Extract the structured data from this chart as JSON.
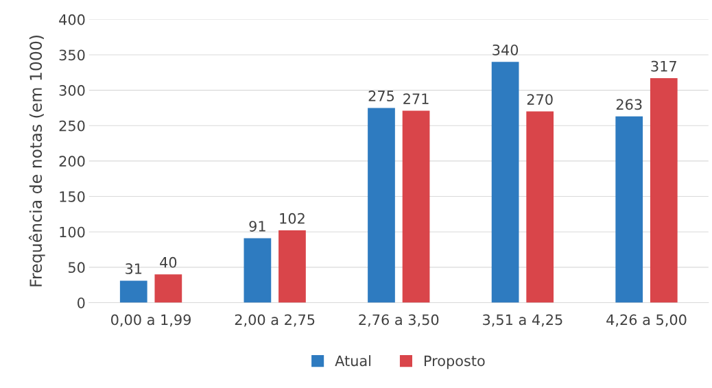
{
  "chart_data": {
    "type": "bar",
    "ylabel": "Frequência de notas (em 1000)",
    "categories": [
      "0,00 a 1,99",
      "2,00 a 2,75",
      "2,76 a 3,50",
      "3,51 a 4,25",
      "4,26 a 5,00"
    ],
    "series": [
      {
        "name": "Atual",
        "color": "#2e7bc0",
        "values": [
          31,
          91,
          275,
          340,
          263
        ]
      },
      {
        "name": "Proposto",
        "color": "#d9454a",
        "values": [
          40,
          102,
          271,
          270,
          317
        ]
      }
    ],
    "ylim": [
      0,
      400
    ],
    "yticks": [
      0,
      50,
      100,
      150,
      200,
      250,
      300,
      350,
      400
    ],
    "grid": "y",
    "legend": "bottom",
    "data_labels": true
  }
}
